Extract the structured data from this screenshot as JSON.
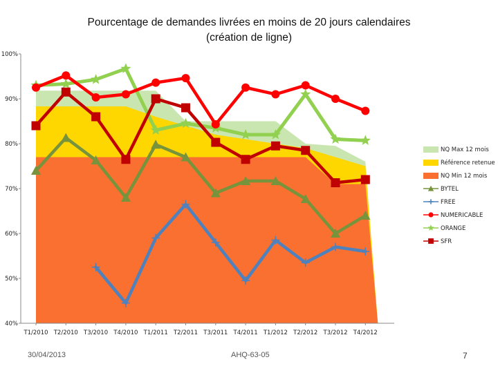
{
  "chart_data": {
    "type": "line",
    "title_lines": [
      "Pourcentage de demandes livrées en moins de 20 jours calendaires",
      "(création de ligne)"
    ],
    "categories": [
      "T1/2010",
      "T2/2010",
      "T3/2010",
      "T4/2010",
      "T1/2011",
      "T2/2011",
      "T3/2011",
      "T4/2011",
      "T1/2012",
      "T2/2012",
      "T3/2012",
      "T4/2012"
    ],
    "ylim": [
      40,
      100
    ],
    "yticks": [
      40,
      50,
      60,
      70,
      80,
      90,
      100
    ],
    "ytick_labels": [
      "40%",
      "50%",
      "60%",
      "70%",
      "80%",
      "90%",
      "100%"
    ],
    "grid": false,
    "legend_position": "right",
    "series": [
      {
        "name": "NQ Max 12 mois",
        "kind": "area",
        "color": "#c9e6b1",
        "values": [
          91.8,
          91.8,
          91.8,
          91.8,
          91.8,
          85,
          85,
          85,
          85,
          80,
          79.5,
          76
        ]
      },
      {
        "name": "Référence retenue",
        "kind": "area",
        "color": "#ffd700",
        "values": [
          88.3,
          88.3,
          88.3,
          88.3,
          86,
          84,
          82,
          81,
          80,
          79,
          77,
          75
        ]
      },
      {
        "name": "NQ Min 12 mois",
        "kind": "area",
        "color": "#f97030",
        "values": [
          77,
          77,
          77,
          77,
          77,
          77,
          77,
          77,
          77,
          77,
          71,
          71
        ]
      },
      {
        "name": "BYTEL",
        "kind": "line",
        "marker": "triangle",
        "color": "#77933c",
        "values": [
          74,
          81.3,
          76.3,
          68,
          79.8,
          77,
          69,
          71.7,
          71.7,
          67.7,
          60,
          64
        ]
      },
      {
        "name": "FREE",
        "kind": "line",
        "marker": "plus",
        "color": "#4f81bd",
        "values": [
          null,
          null,
          52.5,
          44.5,
          59,
          66.5,
          58,
          49.5,
          58.5,
          53.5,
          57,
          56
        ]
      },
      {
        "name": "NUMERICABLE",
        "kind": "line",
        "marker": "circle",
        "color": "#ff0000",
        "values": [
          92.5,
          95.2,
          90.3,
          91,
          93.6,
          94.6,
          84.3,
          92.5,
          91,
          93,
          90,
          87.3
        ]
      },
      {
        "name": "ORANGE",
        "kind": "line",
        "marker": "star",
        "color": "#92d050",
        "values": [
          93,
          93.3,
          94.3,
          96.7,
          83,
          84.5,
          83.5,
          82,
          82,
          91,
          81,
          80.7
        ]
      },
      {
        "name": "SFR",
        "kind": "line",
        "marker": "square",
        "color": "#c00000",
        "values": [
          84,
          91.5,
          86,
          76.5,
          90,
          88,
          80.3,
          76.5,
          79.5,
          78.5,
          71.3,
          72
        ]
      }
    ]
  },
  "footer": {
    "date": "30/04/2013",
    "reference": "AHQ-63-05",
    "page": "7"
  }
}
